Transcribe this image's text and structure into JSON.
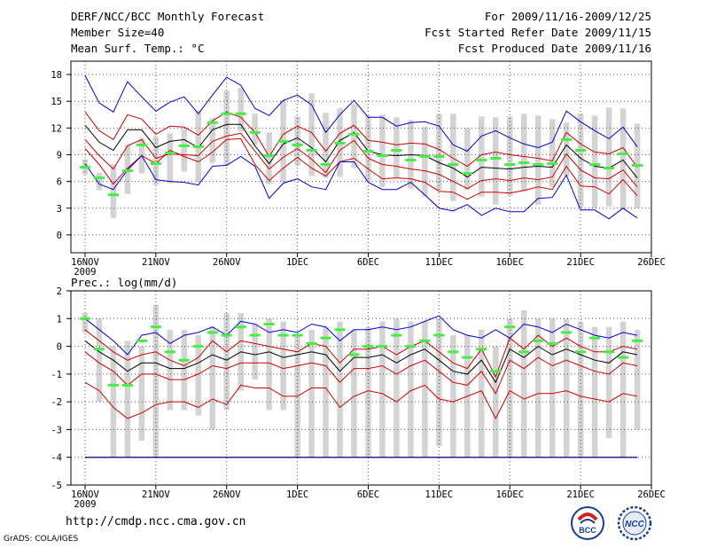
{
  "header": {
    "left": [
      "DERF/NCC/BCC Monthly Forecast",
      "Member Size=40",
      "Mean Surf. Temp.: °C"
    ],
    "right": [
      "For 2009/11/16-2009/12/25",
      "Fcst Started Refer Date 2009/11/15",
      "Fcst Produced Date 2009/11/16"
    ]
  },
  "footer": {
    "url": "http://cmdp.ncc.cma.gov.cn",
    "credit": "GrADS: COLA/IGES"
  },
  "logos": {
    "bcc": "BCC",
    "ncc": "NCC"
  },
  "colors": {
    "envelope": "#0000cc",
    "spread": "#cc0000",
    "mean": "#000000",
    "observed": "#44ee44",
    "box": "#d3d3d3",
    "baseline": "#000080"
  },
  "chart_data": [
    {
      "type": "line",
      "title": "Mean Surf. Temp.: °C",
      "xlabel": "",
      "ylabel": "",
      "ylim": [
        -2,
        19.5
      ],
      "yticks": [
        "18",
        "15",
        "12",
        "9",
        "6",
        "3",
        "0"
      ],
      "ytick_values": [
        18,
        15,
        12,
        9,
        6,
        3,
        0
      ],
      "xticks": [
        {
          "label": "16NOV",
          "day": 0,
          "sublabel": "2009"
        },
        {
          "label": "21NOV",
          "day": 5
        },
        {
          "label": "26NOV",
          "day": 10
        },
        {
          "label": "1DEC",
          "day": 15
        },
        {
          "label": "6DEC",
          "day": 20
        },
        {
          "label": "11DEC",
          "day": 25
        },
        {
          "label": "16DEC",
          "day": 30
        },
        {
          "label": "21DEC",
          "day": 35
        },
        {
          "label": "26DEC",
          "day": 40
        }
      ],
      "xlim": [
        -1,
        40
      ],
      "days": [
        0,
        1,
        2,
        3,
        4,
        5,
        6,
        7,
        8,
        9,
        10,
        11,
        12,
        13,
        14,
        15,
        16,
        17,
        18,
        19,
        20,
        21,
        22,
        23,
        24,
        25,
        26,
        27,
        28,
        29,
        30,
        31,
        32,
        33,
        34,
        35,
        36,
        37,
        38,
        39
      ],
      "series": [
        {
          "name": "max",
          "role": "envelope",
          "values": [
            17.9,
            14.8,
            13.8,
            17.2,
            15.5,
            13.9,
            14.9,
            15.5,
            13.6,
            15.7,
            17.7,
            16.8,
            14.2,
            13.4,
            15.1,
            15.7,
            14.6,
            11.5,
            13.5,
            15.1,
            13.2,
            13.2,
            12.2,
            12.6,
            12.7,
            12.2,
            10.1,
            9.4,
            11.1,
            11.7,
            10.9,
            10.2,
            9.8,
            10.4,
            13.9,
            12.7,
            11.7,
            10.8,
            12.1,
            9.9
          ]
        },
        {
          "name": "upper",
          "role": "spread",
          "values": [
            13.8,
            11.7,
            10.7,
            13.5,
            13.0,
            11.3,
            12.2,
            12.1,
            11.2,
            12.8,
            13.8,
            13.2,
            11.5,
            8.8,
            11.3,
            12.2,
            11.5,
            9.4,
            11.4,
            12.3,
            10.6,
            10.4,
            10.1,
            10.3,
            10.2,
            9.6,
            8.6,
            7.7,
            9.0,
            9.3,
            9.0,
            8.8,
            8.6,
            8.3,
            11.5,
            10.2,
            9.3,
            9.1,
            9.8,
            7.6
          ]
        },
        {
          "name": "mean",
          "role": "mean",
          "values": [
            12.3,
            10.4,
            9.5,
            11.8,
            11.8,
            9.8,
            10.5,
            10.7,
            9.8,
            11.8,
            12.4,
            12.4,
            10.0,
            8.0,
            10.2,
            10.9,
            9.8,
            8.2,
            10.6,
            11.5,
            9.4,
            9.0,
            8.9,
            9.0,
            8.9,
            8.1,
            7.5,
            6.5,
            7.6,
            7.5,
            7.4,
            7.6,
            7.7,
            7.6,
            10.1,
            8.6,
            7.7,
            7.5,
            8.4,
            6.4
          ]
        },
        {
          "name": "lower",
          "role": "spread",
          "values": [
            10.7,
            8.9,
            7.4,
            10.0,
            10.7,
            8.6,
            9.1,
            9.0,
            8.9,
            10.5,
            11.1,
            11.4,
            9.4,
            7.4,
            8.7,
            9.7,
            8.5,
            7.0,
            9.5,
            10.6,
            8.6,
            7.9,
            7.7,
            7.4,
            7.2,
            6.8,
            6.0,
            5.2,
            6.1,
            6.3,
            6.1,
            6.4,
            6.2,
            6.5,
            9.1,
            7.3,
            6.4,
            6.3,
            7.3,
            5.4
          ]
        },
        {
          "name": "lower2",
          "role": "spread",
          "values": [
            9.7,
            7.9,
            5.7,
            7.5,
            8.9,
            8.0,
            9.5,
            8.8,
            8.2,
            9.3,
            10.7,
            10.8,
            7.9,
            6.1,
            7.5,
            8.7,
            7.5,
            6.6,
            8.2,
            8.6,
            7.4,
            6.3,
            6.4,
            6.3,
            5.9,
            4.9,
            4.8,
            4.0,
            4.8,
            4.8,
            4.7,
            5.0,
            5.4,
            5.1,
            7.7,
            5.5,
            5.4,
            4.6,
            6.2,
            4.4
          ]
        },
        {
          "name": "min",
          "role": "envelope",
          "values": [
            8.0,
            5.7,
            5.1,
            7.3,
            8.9,
            6.2,
            6.0,
            5.9,
            5.6,
            7.7,
            7.8,
            8.8,
            7.7,
            4.1,
            5.8,
            6.3,
            5.4,
            5.1,
            8.2,
            8.2,
            5.9,
            5.1,
            5.1,
            5.9,
            4.5,
            3.0,
            2.7,
            3.4,
            2.2,
            3.0,
            2.6,
            2.6,
            4.1,
            4.2,
            6.7,
            2.8,
            2.8,
            1.8,
            3.0,
            1.9
          ]
        },
        {
          "name": "observed",
          "role": "observed",
          "values": [
            7.6,
            6.4,
            4.5,
            7.2,
            10.1,
            8.0,
            9.2,
            10.0,
            9.9,
            12.6,
            13.6,
            13.6,
            11.5,
            8.9,
            10.5,
            10.1,
            9.5,
            7.9,
            10.3,
            11.3,
            9.4,
            8.9,
            9.5,
            8.4,
            8.8,
            8.8,
            7.9,
            6.9,
            8.4,
            8.6,
            7.9,
            8.1,
            7.9,
            8.0,
            10.7,
            9.5,
            7.9,
            7.5,
            9.1,
            7.8
          ]
        },
        {
          "name": "box_hi",
          "role": "box",
          "values": [
            8.5,
            7.0,
            7.9,
            10.1,
            10.9,
            11.0,
            11.4,
            12.0,
            14.0,
            13.1,
            16.2,
            16.5,
            13.6,
            11.5,
            15.1,
            13.3,
            15.9,
            13.7,
            14.2,
            14.7,
            13.4,
            13.5,
            13.2,
            12.9,
            12.1,
            13.6,
            13.6,
            12.0,
            13.3,
            13.2,
            13.3,
            13.6,
            13.4,
            13.0,
            12.6,
            13.6,
            13.4,
            14.3,
            14.2,
            12.5
          ]
        },
        {
          "name": "box_lo",
          "role": "box",
          "values": [
            6.8,
            5.0,
            1.9,
            4.6,
            6.9,
            5.6,
            5.8,
            7.1,
            5.9,
            8.1,
            7.8,
            11.6,
            10.1,
            5.7,
            5.9,
            7.8,
            6.6,
            6.4,
            6.5,
            7.5,
            6.0,
            5.4,
            6.4,
            5.2,
            4.3,
            5.0,
            3.8,
            5.0,
            4.3,
            3.4,
            4.4,
            4.9,
            3.4,
            5.4,
            6.6,
            3.1,
            3.0,
            3.2,
            2.9,
            3.0
          ]
        }
      ]
    },
    {
      "type": "line",
      "title": "Prec.: log(mm/d)",
      "xlabel": "",
      "ylabel": "",
      "ylim": [
        -5,
        2
      ],
      "yticks": [
        "2",
        "1",
        "0",
        "-1",
        "-2",
        "-3",
        "-4",
        "-5"
      ],
      "ytick_values": [
        2,
        1,
        0,
        -1,
        -2,
        -3,
        -4,
        -5
      ],
      "xticks": [
        {
          "label": "16NOV",
          "day": 0,
          "sublabel": "2009"
        },
        {
          "label": "21NOV",
          "day": 5
        },
        {
          "label": "26NOV",
          "day": 10
        },
        {
          "label": "1DEC",
          "day": 15
        },
        {
          "label": "6DEC",
          "day": 20
        },
        {
          "label": "11DEC",
          "day": 25
        },
        {
          "label": "16DEC",
          "day": 30
        },
        {
          "label": "21DEC",
          "day": 35
        },
        {
          "label": "26DEC",
          "day": 40
        }
      ],
      "xlim": [
        -1,
        40
      ],
      "days": [
        0,
        1,
        2,
        3,
        4,
        5,
        6,
        7,
        8,
        9,
        10,
        11,
        12,
        13,
        14,
        15,
        16,
        17,
        18,
        19,
        20,
        21,
        22,
        23,
        24,
        25,
        26,
        27,
        28,
        29,
        30,
        31,
        32,
        33,
        34,
        35,
        36,
        37,
        38,
        39
      ],
      "series": [
        {
          "name": "max",
          "role": "envelope",
          "values": [
            1.0,
            0.6,
            0.2,
            -0.3,
            0.4,
            0.5,
            0.1,
            0.4,
            0.5,
            0.7,
            0.4,
            0.9,
            0.8,
            0.5,
            0.6,
            0.5,
            0.8,
            0.7,
            0.2,
            0.6,
            0.6,
            0.7,
            0.6,
            0.7,
            0.9,
            1.1,
            0.6,
            0.4,
            0.3,
            0.6,
            0.3,
            0.8,
            0.7,
            0.5,
            0.8,
            0.6,
            0.4,
            0.3,
            0.5,
            0.4
          ]
        },
        {
          "name": "upper",
          "role": "spread",
          "values": [
            0.6,
            0.2,
            -0.2,
            -0.5,
            -0.3,
            -0.2,
            -0.5,
            -0.7,
            -0.4,
            0.2,
            -0.2,
            0.2,
            0.1,
            0.0,
            -0.1,
            -0.2,
            0.1,
            0.0,
            -0.6,
            -0.1,
            -0.1,
            0.0,
            -0.3,
            0.0,
            0.2,
            -0.2,
            -0.6,
            -0.8,
            -0.1,
            -1.1,
            0.3,
            -0.1,
            0.4,
            0.0,
            0.3,
            0.0,
            -0.2,
            -0.2,
            0.0,
            -0.1
          ]
        },
        {
          "name": "mean",
          "role": "mean",
          "values": [
            0.2,
            -0.2,
            -0.5,
            -0.9,
            -0.6,
            -0.6,
            -0.8,
            -0.8,
            -0.6,
            -0.3,
            -0.5,
            -0.2,
            -0.3,
            -0.2,
            -0.4,
            -0.3,
            -0.2,
            -0.3,
            -0.9,
            -0.4,
            -0.4,
            -0.3,
            -0.6,
            -0.3,
            -0.1,
            -0.5,
            -0.9,
            -1.0,
            -0.5,
            -1.3,
            -0.1,
            -0.4,
            0.0,
            -0.3,
            -0.1,
            -0.3,
            -0.5,
            -0.6,
            -0.2,
            -0.3
          ]
        },
        {
          "name": "lower",
          "role": "spread",
          "values": [
            -0.2,
            -0.6,
            -0.9,
            -1.4,
            -1.0,
            -1.0,
            -1.2,
            -1.2,
            -1.0,
            -0.7,
            -0.8,
            -0.6,
            -0.6,
            -0.6,
            -0.8,
            -0.7,
            -0.6,
            -0.7,
            -1.3,
            -0.8,
            -0.8,
            -0.7,
            -1.0,
            -0.7,
            -0.5,
            -0.9,
            -1.3,
            -1.4,
            -0.9,
            -1.7,
            -0.5,
            -0.8,
            -0.4,
            -0.7,
            -0.5,
            -0.7,
            -0.9,
            -1.0,
            -0.6,
            -0.7
          ]
        },
        {
          "name": "low2",
          "role": "spread",
          "values": [
            -1.3,
            -1.6,
            -2.2,
            -2.6,
            -2.4,
            -2.1,
            -2.0,
            -2.0,
            -2.2,
            -1.9,
            -2.1,
            -1.4,
            -1.5,
            -1.5,
            -1.8,
            -1.8,
            -1.5,
            -1.5,
            -2.2,
            -1.8,
            -1.6,
            -1.7,
            -2.0,
            -1.6,
            -1.4,
            -1.9,
            -2.0,
            -1.8,
            -1.6,
            -2.6,
            -1.6,
            -1.9,
            -1.7,
            -1.7,
            -1.6,
            -1.8,
            -1.9,
            -2.0,
            -1.7,
            -1.8
          ]
        },
        {
          "name": "observed",
          "role": "observed",
          "values": [
            1.0,
            -0.1,
            -1.4,
            -1.4,
            0.2,
            0.7,
            -0.2,
            -0.5,
            0.0,
            0.5,
            0.4,
            0.7,
            0.4,
            0.8,
            0.4,
            0.4,
            0.1,
            0.3,
            0.6,
            -0.3,
            0.0,
            0.0,
            0.4,
            0.0,
            0.2,
            0.4,
            -0.2,
            -0.4,
            -0.1,
            -0.9,
            0.7,
            -0.2,
            0.2,
            0.1,
            0.5,
            -0.2,
            0.3,
            -0.2,
            -0.4,
            0.2
          ]
        },
        {
          "name": "box_hi",
          "role": "box",
          "values": [
            1.2,
            1.0,
            0.0,
            0.2,
            0.0,
            1.5,
            0.6,
            0.6,
            0.4,
            0.7,
            1.2,
            1.2,
            0.8,
            1.0,
            0.9,
            0.4,
            0.6,
            0.7,
            0.9,
            0.6,
            0.7,
            0.9,
            1.0,
            0.9,
            0.9,
            1.0,
            0.4,
            0.4,
            0.6,
            0.0,
            1.0,
            1.3,
            1.0,
            1.0,
            1.0,
            0.9,
            0.7,
            0.7,
            0.9,
            0.6
          ]
        },
        {
          "name": "box_lo",
          "role": "box",
          "values": [
            0.5,
            -2.0,
            -4.0,
            -4.0,
            -3.4,
            -4.0,
            -2.3,
            -2.3,
            -2.5,
            -3.0,
            -2.3,
            -1.6,
            -1.2,
            -2.3,
            -2.3,
            -4.0,
            -4.0,
            -4.0,
            -4.0,
            -4.0,
            -4.0,
            -4.0,
            -4.0,
            -4.0,
            -4.0,
            -3.6,
            -4.0,
            -4.0,
            -4.0,
            -4.0,
            -4.0,
            -4.0,
            -4.0,
            -4.0,
            -4.0,
            -4.0,
            -4.0,
            -3.3,
            -4.0,
            -3.0
          ]
        },
        {
          "name": "floor",
          "role": "baseline",
          "values": [
            -4.0
          ]
        }
      ]
    }
  ]
}
